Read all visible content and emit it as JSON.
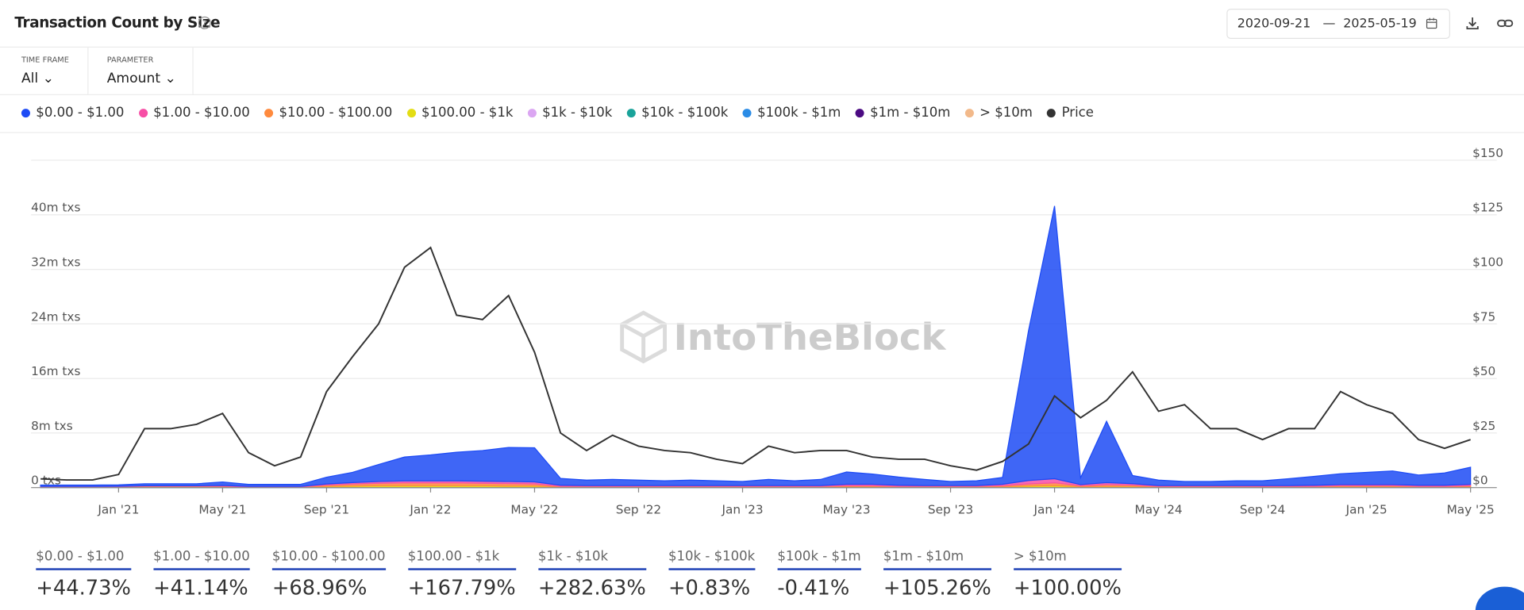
{
  "header": {
    "title": "Transaction Count by Size",
    "date_from": "2020-09-21",
    "date_sep": "—",
    "date_to": "2025-05-19"
  },
  "filters": [
    {
      "label": "TIME FRAME",
      "value": "All"
    },
    {
      "label": "PARAMETER",
      "value": "Amount"
    }
  ],
  "chart_data": {
    "type": "area",
    "watermark": "IntoTheBlock",
    "x": [
      "2020-10",
      "2020-11",
      "2020-12",
      "2021-01",
      "2021-02",
      "2021-03",
      "2021-04",
      "2021-05",
      "2021-06",
      "2021-07",
      "2021-08",
      "2021-09",
      "2021-10",
      "2021-11",
      "2021-12",
      "2022-01",
      "2022-02",
      "2022-03",
      "2022-04",
      "2022-05",
      "2022-06",
      "2022-07",
      "2022-08",
      "2022-09",
      "2022-10",
      "2022-11",
      "2022-12",
      "2023-01",
      "2023-02",
      "2023-03",
      "2023-04",
      "2023-05",
      "2023-06",
      "2023-07",
      "2023-08",
      "2023-09",
      "2023-10",
      "2023-11",
      "2023-12",
      "2024-01",
      "2024-02",
      "2024-03",
      "2024-04",
      "2024-05",
      "2024-06",
      "2024-07",
      "2024-08",
      "2024-09",
      "2024-10",
      "2024-11",
      "2024-12",
      "2025-01",
      "2025-02",
      "2025-03",
      "2025-04",
      "2025-05"
    ],
    "xticks": [
      {
        "value": "2021-01",
        "label": "Jan '21"
      },
      {
        "value": "2021-05",
        "label": "May '21"
      },
      {
        "value": "2021-09",
        "label": "Sep '21"
      },
      {
        "value": "2022-01",
        "label": "Jan '22"
      },
      {
        "value": "2022-05",
        "label": "May '22"
      },
      {
        "value": "2022-09",
        "label": "Sep '22"
      },
      {
        "value": "2023-01",
        "label": "Jan '23"
      },
      {
        "value": "2023-05",
        "label": "May '23"
      },
      {
        "value": "2023-09",
        "label": "Sep '23"
      },
      {
        "value": "2024-01",
        "label": "Jan '24"
      },
      {
        "value": "2024-05",
        "label": "May '24"
      },
      {
        "value": "2024-09",
        "label": "Sep '24"
      },
      {
        "value": "2025-01",
        "label": "Jan '25"
      },
      {
        "value": "2025-05",
        "label": "May '25"
      }
    ],
    "ylim": [
      0,
      48
    ],
    "yticks": [
      {
        "value": 0,
        "label": "0 txs"
      },
      {
        "value": 8,
        "label": "8m txs"
      },
      {
        "value": 16,
        "label": "16m txs"
      },
      {
        "value": 24,
        "label": "24m txs"
      },
      {
        "value": 32,
        "label": "32m txs"
      },
      {
        "value": 40,
        "label": "40m txs"
      }
    ],
    "y2lim": [
      0,
      150
    ],
    "y2ticks": [
      {
        "value": 0,
        "label": "$0"
      },
      {
        "value": 25,
        "label": "$25"
      },
      {
        "value": 50,
        "label": "$50"
      },
      {
        "value": 75,
        "label": "$75"
      },
      {
        "value": 100,
        "label": "$100"
      },
      {
        "value": 125,
        "label": "$125"
      },
      {
        "value": 150,
        "label": "$150"
      }
    ],
    "grid": true,
    "series": [
      {
        "name": "$0.00 - $1.00",
        "color": "#1d4bf5",
        "values": [
          0.2,
          0.2,
          0.2,
          0.2,
          0.3,
          0.3,
          0.3,
          0.5,
          0.3,
          0.3,
          0.3,
          1.0,
          1.5,
          2.5,
          3.5,
          3.8,
          4.2,
          4.5,
          5.0,
          5.0,
          1.0,
          0.8,
          0.9,
          0.8,
          0.7,
          0.8,
          0.7,
          0.6,
          0.9,
          0.7,
          0.9,
          1.8,
          1.5,
          1.2,
          0.9,
          0.6,
          0.7,
          1.0,
          22,
          40,
          1.0,
          9,
          1.2,
          0.8,
          0.6,
          0.6,
          0.7,
          0.7,
          1.0,
          1.3,
          1.6,
          1.8,
          2.0,
          1.5,
          1.8,
          2.5
        ]
      },
      {
        "name": "$1.00 - $10.00",
        "color": "#f74fa6",
        "values": [
          0.05,
          0.05,
          0.05,
          0.05,
          0.05,
          0.05,
          0.05,
          0.1,
          0.05,
          0.05,
          0.05,
          0.15,
          0.2,
          0.25,
          0.3,
          0.3,
          0.3,
          0.3,
          0.3,
          0.3,
          0.15,
          0.1,
          0.1,
          0.1,
          0.1,
          0.1,
          0.1,
          0.1,
          0.1,
          0.1,
          0.1,
          0.2,
          0.2,
          0.15,
          0.1,
          0.1,
          0.1,
          0.2,
          0.5,
          0.6,
          0.15,
          0.3,
          0.2,
          0.1,
          0.1,
          0.1,
          0.1,
          0.1,
          0.1,
          0.15,
          0.15,
          0.15,
          0.15,
          0.15,
          0.15,
          0.2
        ]
      },
      {
        "name": "$10.00 - $100.00",
        "color": "#ff8a3d",
        "values": [
          0.05,
          0.05,
          0.05,
          0.05,
          0.1,
          0.1,
          0.1,
          0.1,
          0.05,
          0.05,
          0.05,
          0.2,
          0.3,
          0.35,
          0.4,
          0.4,
          0.4,
          0.35,
          0.35,
          0.3,
          0.1,
          0.1,
          0.1,
          0.1,
          0.1,
          0.1,
          0.1,
          0.1,
          0.1,
          0.1,
          0.1,
          0.15,
          0.15,
          0.1,
          0.1,
          0.1,
          0.1,
          0.15,
          0.3,
          0.4,
          0.15,
          0.25,
          0.2,
          0.1,
          0.1,
          0.1,
          0.1,
          0.1,
          0.1,
          0.1,
          0.15,
          0.15,
          0.15,
          0.1,
          0.1,
          0.15
        ]
      },
      {
        "name": "$100.00 - $1k",
        "color": "#e3dd14",
        "values": [
          0.03,
          0.03,
          0.03,
          0.05,
          0.05,
          0.05,
          0.05,
          0.05,
          0.03,
          0.03,
          0.03,
          0.1,
          0.15,
          0.2,
          0.2,
          0.2,
          0.2,
          0.2,
          0.15,
          0.15,
          0.05,
          0.05,
          0.05,
          0.05,
          0.05,
          0.05,
          0.05,
          0.05,
          0.05,
          0.05,
          0.05,
          0.08,
          0.08,
          0.05,
          0.05,
          0.05,
          0.05,
          0.08,
          0.15,
          0.2,
          0.08,
          0.1,
          0.1,
          0.05,
          0.05,
          0.05,
          0.05,
          0.05,
          0.05,
          0.05,
          0.08,
          0.08,
          0.08,
          0.05,
          0.05,
          0.08
        ]
      },
      {
        "name": "$1k - $10k",
        "color": "#dba6f2",
        "values": [
          0.02,
          0.02,
          0.02,
          0.02,
          0.03,
          0.03,
          0.03,
          0.03,
          0.02,
          0.02,
          0.02,
          0.04,
          0.05,
          0.05,
          0.05,
          0.05,
          0.05,
          0.05,
          0.05,
          0.05,
          0.02,
          0.02,
          0.02,
          0.02,
          0.02,
          0.02,
          0.02,
          0.02,
          0.02,
          0.02,
          0.02,
          0.03,
          0.03,
          0.02,
          0.02,
          0.02,
          0.02,
          0.03,
          0.05,
          0.06,
          0.03,
          0.04,
          0.04,
          0.02,
          0.02,
          0.02,
          0.02,
          0.02,
          0.02,
          0.02,
          0.03,
          0.03,
          0.03,
          0.02,
          0.02,
          0.03
        ]
      },
      {
        "name": "$10k - $100k",
        "color": "#1aa39a",
        "values": [
          0.01,
          0.01,
          0.01,
          0.01,
          0.02,
          0.02,
          0.02,
          0.02,
          0.01,
          0.01,
          0.01,
          0.02,
          0.02,
          0.02,
          0.02,
          0.02,
          0.02,
          0.02,
          0.02,
          0.02,
          0.01,
          0.01,
          0.01,
          0.01,
          0.01,
          0.01,
          0.01,
          0.01,
          0.01,
          0.01,
          0.01,
          0.01,
          0.01,
          0.01,
          0.01,
          0.01,
          0.01,
          0.01,
          0.02,
          0.02,
          0.01,
          0.02,
          0.02,
          0.01,
          0.01,
          0.01,
          0.01,
          0.01,
          0.01,
          0.01,
          0.01,
          0.01,
          0.01,
          0.01,
          0.01,
          0.01
        ]
      },
      {
        "name": "$100k - $1m",
        "color": "#2b8ce6",
        "values": [
          0.01,
          0.01,
          0.01,
          0.01,
          0.01,
          0.01,
          0.01,
          0.01,
          0.01,
          0.01,
          0.01,
          0.01,
          0.01,
          0.01,
          0.01,
          0.01,
          0.01,
          0.01,
          0.01,
          0.01,
          0.01,
          0.01,
          0.01,
          0.01,
          0.01,
          0.01,
          0.01,
          0.01,
          0.01,
          0.01,
          0.01,
          0.01,
          0.01,
          0.01,
          0.01,
          0.01,
          0.01,
          0.01,
          0.01,
          0.01,
          0.01,
          0.01,
          0.01,
          0.01,
          0.01,
          0.01,
          0.01,
          0.01,
          0.01,
          0.01,
          0.01,
          0.01,
          0.01,
          0.01,
          0.01,
          0.01
        ]
      },
      {
        "name": "$1m - $10m",
        "color": "#4b0a82",
        "values": [
          0.005,
          0.005,
          0.005,
          0.005,
          0.005,
          0.005,
          0.005,
          0.005,
          0.005,
          0.005,
          0.005,
          0.005,
          0.005,
          0.005,
          0.005,
          0.005,
          0.005,
          0.005,
          0.005,
          0.005,
          0.005,
          0.005,
          0.005,
          0.005,
          0.005,
          0.005,
          0.005,
          0.005,
          0.005,
          0.005,
          0.005,
          0.005,
          0.005,
          0.005,
          0.005,
          0.005,
          0.005,
          0.005,
          0.005,
          0.005,
          0.005,
          0.005,
          0.005,
          0.005,
          0.005,
          0.005,
          0.005,
          0.005,
          0.005,
          0.005,
          0.005,
          0.005,
          0.005,
          0.005,
          0.005,
          0.005
        ]
      },
      {
        "name": "> $10m",
        "color": "#f2b98a",
        "values": [
          0.002,
          0.002,
          0.002,
          0.002,
          0.002,
          0.002,
          0.002,
          0.002,
          0.002,
          0.002,
          0.002,
          0.002,
          0.002,
          0.002,
          0.002,
          0.002,
          0.002,
          0.002,
          0.002,
          0.002,
          0.002,
          0.002,
          0.002,
          0.002,
          0.002,
          0.002,
          0.002,
          0.002,
          0.002,
          0.002,
          0.002,
          0.002,
          0.002,
          0.002,
          0.002,
          0.002,
          0.002,
          0.002,
          0.002,
          0.002,
          0.002,
          0.002,
          0.002,
          0.002,
          0.002,
          0.002,
          0.002,
          0.002,
          0.002,
          0.002,
          0.002,
          0.002,
          0.002,
          0.002,
          0.002,
          0.002
        ]
      },
      {
        "name": "Price",
        "color": "#333333",
        "axis": "y2",
        "values": [
          4,
          3.5,
          3.5,
          6,
          27,
          27,
          29,
          34,
          16,
          10,
          14,
          44,
          60,
          75,
          101,
          110,
          79,
          77,
          88,
          62,
          25,
          17,
          24,
          19,
          17,
          16,
          13,
          11,
          19,
          16,
          17,
          17,
          14,
          13,
          13,
          10,
          8,
          12,
          20,
          42,
          32,
          40,
          53,
          35,
          38,
          27,
          27,
          22,
          27,
          27,
          44,
          38,
          34,
          22,
          18,
          22
        ]
      }
    ]
  },
  "stats": [
    {
      "label": "$0.00 - $1.00",
      "value": "+44.73%"
    },
    {
      "label": "$1.00 - $10.00",
      "value": "+41.14%"
    },
    {
      "label": "$10.00 - $100.00",
      "value": "+68.96%"
    },
    {
      "label": "$100.00 - $1k",
      "value": "+167.79%"
    },
    {
      "label": "$1k - $10k",
      "value": "+282.63%"
    },
    {
      "label": "$10k - $100k",
      "value": "+0.83%"
    },
    {
      "label": "$100k - $1m",
      "value": "-0.41%"
    },
    {
      "label": "$1m - $10m",
      "value": "+105.26%"
    },
    {
      "label": "> $10m",
      "value": "+100.00%"
    }
  ]
}
